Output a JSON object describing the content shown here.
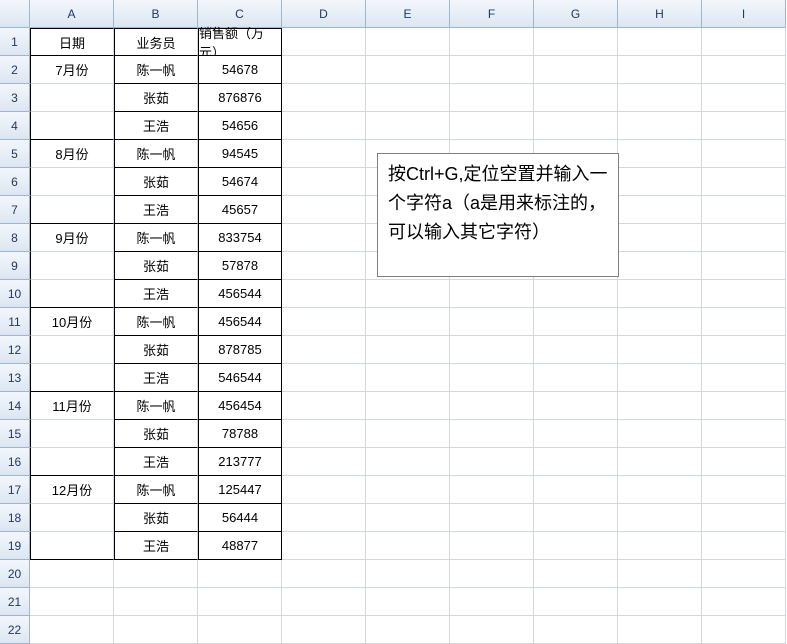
{
  "columns": [
    "A",
    "B",
    "C",
    "D",
    "E",
    "F",
    "G",
    "H",
    "I"
  ],
  "row_count": 22,
  "table": {
    "header": {
      "A": "日期",
      "B": "业务员",
      "C": "销售额（万元）"
    },
    "rows": [
      {
        "A": "7月份",
        "B": "陈一帆",
        "C": "54678"
      },
      {
        "A": "",
        "B": "张茹",
        "C": "876876"
      },
      {
        "A": "",
        "B": "王浩",
        "C": "54656"
      },
      {
        "A": "8月份",
        "B": "陈一帆",
        "C": "94545"
      },
      {
        "A": "",
        "B": "张茹",
        "C": "54674"
      },
      {
        "A": "",
        "B": "王浩",
        "C": "45657"
      },
      {
        "A": "9月份",
        "B": "陈一帆",
        "C": "833754"
      },
      {
        "A": "",
        "B": "张茹",
        "C": "57878"
      },
      {
        "A": "",
        "B": "王浩",
        "C": "456544"
      },
      {
        "A": "10月份",
        "B": "陈一帆",
        "C": "456544"
      },
      {
        "A": "",
        "B": "张茹",
        "C": "878785"
      },
      {
        "A": "",
        "B": "王浩",
        "C": "546544"
      },
      {
        "A": "11月份",
        "B": "陈一帆",
        "C": "456454"
      },
      {
        "A": "",
        "B": "张茹",
        "C": "78788"
      },
      {
        "A": "",
        "B": "王浩",
        "C": "213777"
      },
      {
        "A": "12月份",
        "B": "陈一帆",
        "C": "125447"
      },
      {
        "A": "",
        "B": "张茹",
        "C": "56444"
      },
      {
        "A": "",
        "B": "王浩",
        "C": "48877"
      }
    ]
  },
  "note": {
    "text": "按Ctrl+G,定位空置并输入一个字符a（a是用来标注的，可以输入其它字符）"
  },
  "colors": {
    "header_bg_top": "#f3f7fc",
    "header_bg_bottom": "#dce6f2",
    "header_border": "#9eb6ce",
    "grid_line": "#d0d7e5",
    "data_border": "#000000",
    "note_border": "#808080",
    "background": "#ffffff"
  }
}
